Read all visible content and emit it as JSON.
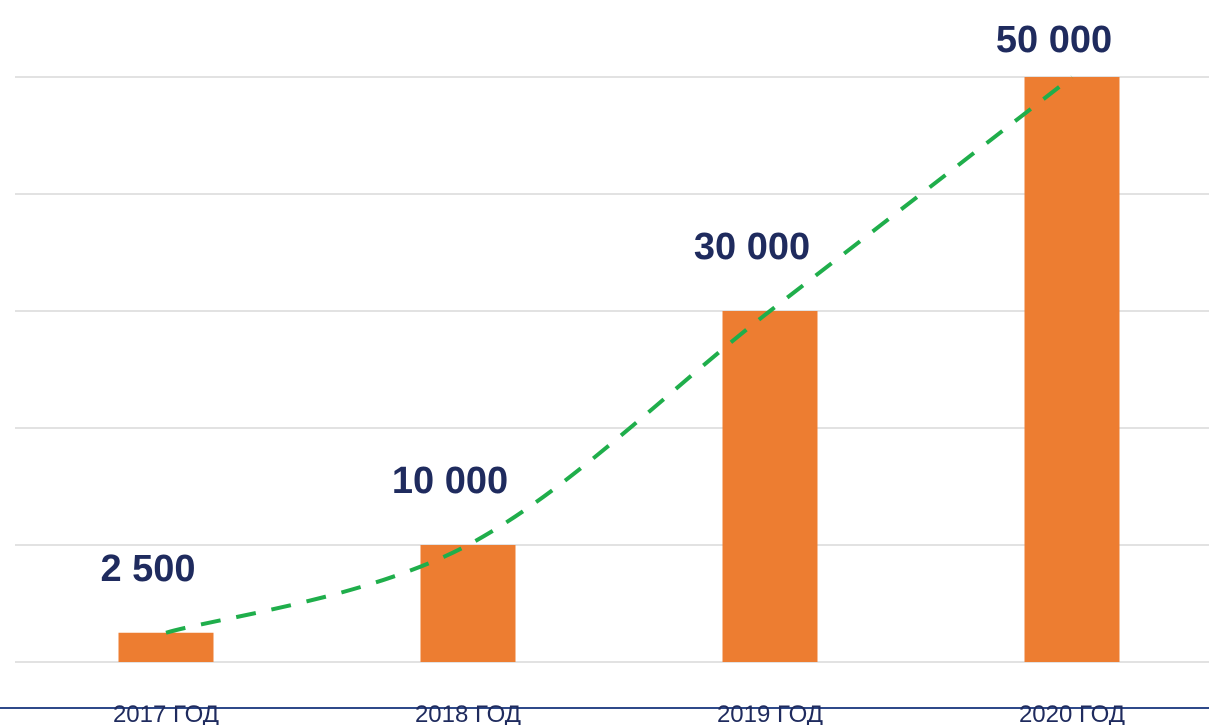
{
  "chart_data": {
    "type": "bar",
    "categories": [
      "2017 ГОД",
      "2018 ГОД",
      "2019 ГОД",
      "2020 ГОД"
    ],
    "values": [
      2500,
      10000,
      30000,
      50000
    ],
    "value_labels": [
      "2 500",
      "10 000",
      "30 000",
      "50 000"
    ],
    "color": "#ed7d31",
    "trendline": true,
    "trend_color": "#1fae4b",
    "ylim": [
      0,
      50000
    ],
    "yticks": [
      0,
      10000,
      20000,
      30000,
      40000,
      50000
    ],
    "grid": true
  }
}
